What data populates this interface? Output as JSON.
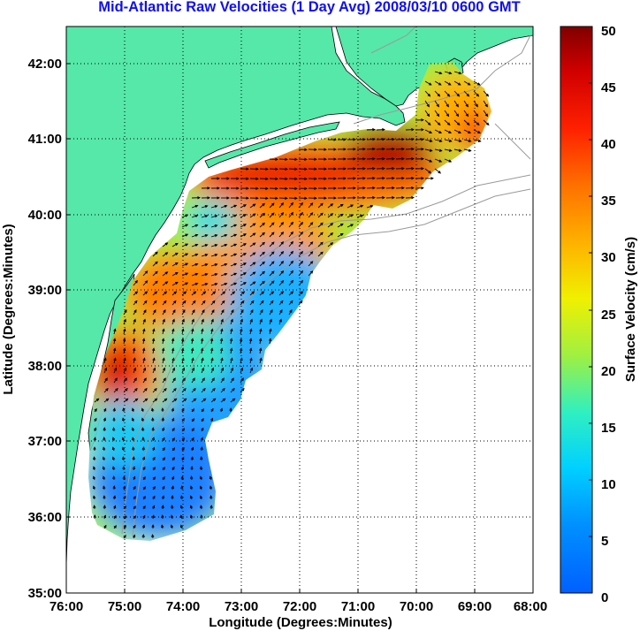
{
  "title": "Mid-Atlantic Raw Velocities (1 Day Avg) 2008/03/10 0600 GMT",
  "x_axis": {
    "label": "Longitude (Degrees:Minutes)",
    "ticks": [
      "76:00",
      "75:00",
      "74:00",
      "73:00",
      "72:00",
      "71:00",
      "70:00",
      "69:00",
      "68:00"
    ]
  },
  "y_axis": {
    "label": "Latitude (Degrees:Minutes)",
    "ticks": [
      "35:00",
      "36:00",
      "37:00",
      "38:00",
      "39:00",
      "40:00",
      "41:00",
      "42:00"
    ]
  },
  "colorbar": {
    "label": "Surface Velocity (cm/s)",
    "ticks": [
      "0",
      "5",
      "10",
      "15",
      "20",
      "25",
      "30",
      "35",
      "40",
      "45",
      "50"
    ],
    "min": 0,
    "max": 50
  },
  "colors": {
    "land": "#55e8a8",
    "title": "#1010ee",
    "bathymetry": "#9a9a9a",
    "grid": "#000000"
  },
  "grid_lines": "dotted"
}
